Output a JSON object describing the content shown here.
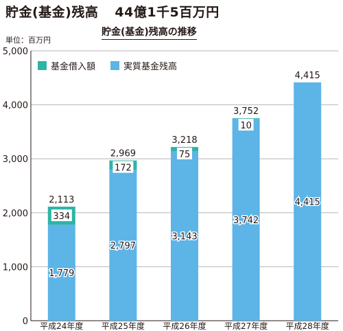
{
  "header": {
    "title": "貯金(基金)残高",
    "amount": "44億1千5百万円"
  },
  "chart_data": {
    "type": "bar",
    "title": "貯金(基金)残高の推移",
    "unit_label": "単位：百万円",
    "categories": [
      "平成24年度",
      "平成25年度",
      "平成26年度",
      "平成27年度",
      "平成28年度"
    ],
    "series": [
      {
        "name": "実質基金残高",
        "values": [
          1779,
          2797,
          3143,
          3742,
          4415
        ],
        "color": "#5db4e6"
      },
      {
        "name": "基金借入額",
        "values": [
          334,
          172,
          75,
          10,
          0
        ],
        "color": "#2cb5a6"
      }
    ],
    "totals": [
      2113,
      2969,
      3218,
      3752,
      4415
    ],
    "stacked": true,
    "ylim": [
      0,
      5000
    ],
    "yticks": [
      0,
      1000,
      2000,
      3000,
      4000,
      5000
    ],
    "ytick_labels": [
      "0",
      "1,000",
      "2,000",
      "3,000",
      "4,000",
      "5,000"
    ],
    "grid": true,
    "legend": {
      "position": "top-left",
      "order": [
        "基金借入額",
        "実質基金残高"
      ]
    }
  }
}
